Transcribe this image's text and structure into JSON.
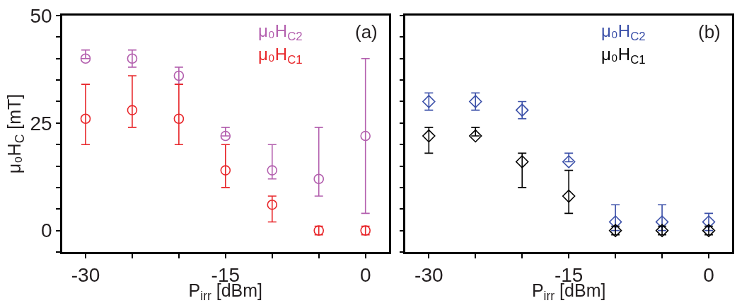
{
  "chart_data": [
    {
      "type": "scatter",
      "marker": "circle",
      "xlabel": "P$_{irr}$ [dBm]",
      "ylabel": "μ₀H$_{C}$ [mT]",
      "annotations": [
        "(a)"
      ],
      "xlim": [
        -32.5,
        2.5
      ],
      "ylim": [
        -5,
        50
      ],
      "xticks": [
        -30,
        {
          "value": -25,
          "label": null
        },
        {
          "value": -20,
          "label": null
        },
        -15,
        {
          "value": -10,
          "label": null
        },
        {
          "value": -5,
          "label": null
        },
        0
      ],
      "yticks": [
        {
          "value": -5,
          "label": null
        },
        0,
        {
          "value": 5,
          "label": null
        },
        {
          "value": 10,
          "label": null
        },
        {
          "value": 15,
          "label": null
        },
        {
          "value": 20,
          "label": null
        },
        25,
        {
          "value": 30,
          "label": null
        },
        {
          "value": 35,
          "label": null
        },
        {
          "value": 40,
          "label": null
        },
        {
          "value": 45,
          "label": null
        },
        50
      ],
      "x": [
        -30,
        -25,
        -20,
        -15,
        -10,
        -5,
        0
      ],
      "series": [
        {
          "name": "μ₀H$_{C2}$",
          "color": "#b35fae",
          "values": [
            40,
            40,
            36,
            22,
            14,
            12,
            22
          ],
          "errors": [
            [
              40,
              42
            ],
            [
              38,
              42
            ],
            [
              34,
              38
            ],
            [
              22,
              24
            ],
            [
              12,
              20
            ],
            [
              8,
              24
            ],
            [
              4,
              40
            ]
          ]
        },
        {
          "name": "μ₀H$_{C1}$",
          "color": "#e8262a",
          "values": [
            26,
            28,
            26,
            14,
            6,
            0,
            0
          ],
          "errors": [
            [
              20,
              34
            ],
            [
              24,
              36
            ],
            [
              20,
              34
            ],
            [
              10,
              20
            ],
            [
              2,
              8
            ],
            [
              -1,
              1
            ],
            [
              -1,
              1
            ]
          ]
        }
      ]
    },
    {
      "type": "scatter",
      "marker": "diamond",
      "xlabel": "P$_{irr}$ [dBm]",
      "annotations": [
        "(b)"
      ],
      "xlim": [
        -32.5,
        2.5
      ],
      "ylim": [
        -5,
        50
      ],
      "tick_labels": "x",
      "xticks": [
        -30,
        {
          "value": -25,
          "label": null
        },
        {
          "value": -20,
          "label": null
        },
        -15,
        {
          "value": -10,
          "label": null
        },
        {
          "value": -5,
          "label": null
        },
        0
      ],
      "yticks": [
        {
          "value": -5,
          "label": null
        },
        {
          "value": 0,
          "label": null
        },
        {
          "value": 5,
          "label": null
        },
        {
          "value": 10,
          "label": null
        },
        {
          "value": 15,
          "label": null
        },
        {
          "value": 20,
          "label": null
        },
        {
          "value": 25,
          "label": null
        },
        {
          "value": 30,
          "label": null
        },
        {
          "value": 35,
          "label": null
        },
        {
          "value": 40,
          "label": null
        },
        {
          "value": 45,
          "label": null
        },
        {
          "value": 50,
          "label": null
        }
      ],
      "x": [
        -30,
        -25,
        -20,
        -15,
        -10,
        -5,
        0
      ],
      "series": [
        {
          "name": "μ₀H$_{C2}$",
          "color": "#3a4fa8",
          "values": [
            30,
            30,
            28,
            16,
            2,
            2,
            2
          ],
          "errors": [
            [
              28,
              32
            ],
            [
              28,
              32
            ],
            [
              26,
              30
            ],
            [
              16,
              18
            ],
            [
              0,
              6
            ],
            [
              0,
              6
            ],
            [
              0,
              4
            ]
          ]
        },
        {
          "name": "μ₀H$_{C1}$",
          "color": "#000000",
          "values": [
            22,
            22,
            16,
            8,
            0,
            0,
            0
          ],
          "errors": [
            [
              18,
              24
            ],
            [
              22,
              24
            ],
            [
              10,
              18
            ],
            [
              4,
              14
            ],
            [
              -1,
              1
            ],
            [
              -1,
              1
            ],
            [
              -1,
              1
            ]
          ]
        }
      ]
    }
  ]
}
